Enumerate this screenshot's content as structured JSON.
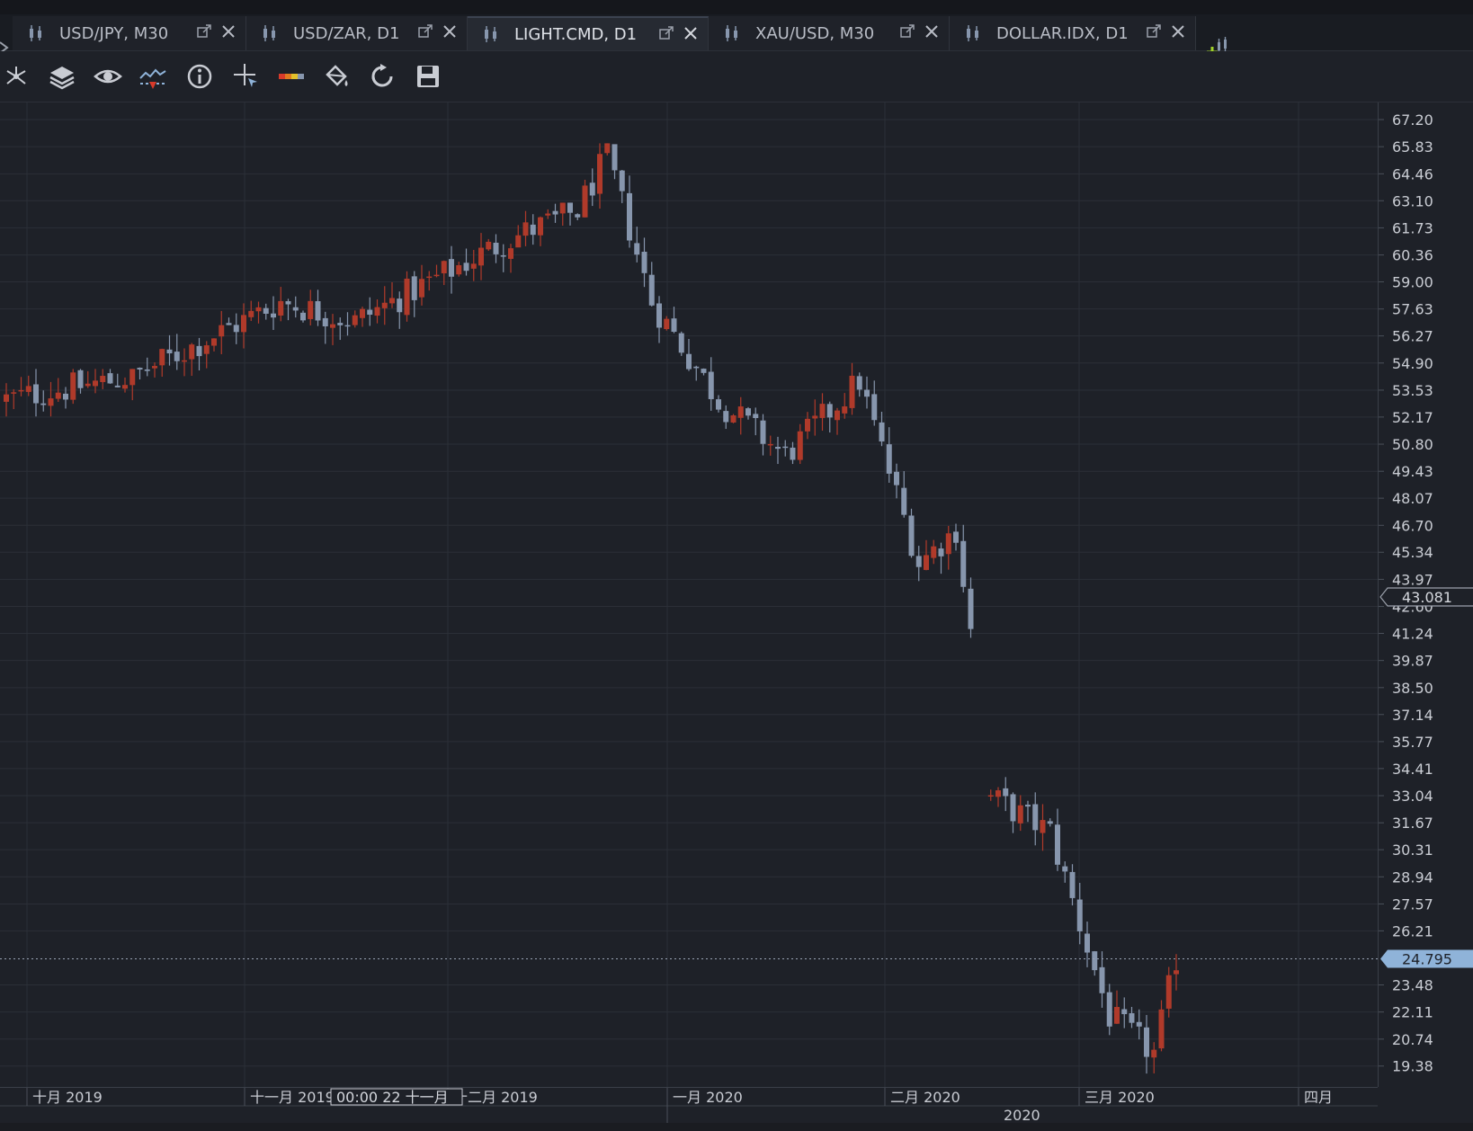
{
  "tabs": [
    {
      "label": "USD/JPY, M30",
      "active": false
    },
    {
      "label": "USD/ZAR, D1",
      "active": false
    },
    {
      "label": "LIGHT.CMD, D1",
      "active": true
    },
    {
      "label": "XAU/USD, M30",
      "active": false
    },
    {
      "label": "DOLLAR.IDX, D1",
      "active": false
    }
  ],
  "toolbar": {
    "icons": [
      "drawing-tools-icon",
      "layers-icon",
      "eye-icon",
      "indicators-icon",
      "info-icon",
      "crosshair-icon",
      "palette-icon",
      "paint-bucket-icon",
      "refresh-icon",
      "save-icon"
    ]
  },
  "colors": {
    "background": "#1e2128",
    "bull_candle": "#8796ad",
    "bear_candle": "#b03a2a",
    "grid": "#2b2f37",
    "accent_label": "#8fb3d9",
    "add_tab": "#9fd12a"
  },
  "chart": {
    "symbol": "LIGHT.CMD, D1",
    "price_ticks": [
      "67.20",
      "65.83",
      "64.46",
      "63.10",
      "61.73",
      "60.36",
      "59.00",
      "57.63",
      "56.27",
      "54.90",
      "53.53",
      "52.17",
      "50.80",
      "49.43",
      "48.07",
      "46.70",
      "45.34",
      "43.97",
      "42.60",
      "41.24",
      "39.87",
      "38.50",
      "37.14",
      "35.77",
      "34.41",
      "33.04",
      "31.67",
      "30.31",
      "28.94",
      "27.57",
      "26.21",
      "23.48",
      "22.11",
      "20.74",
      "19.38"
    ],
    "current_price": "24.795",
    "marker_price": "43.081",
    "time_labels": [
      "十月 2019",
      "十一月 2019",
      "十二月 2019",
      "一月 2020",
      "二月 2020",
      "三月 2020",
      "四月"
    ],
    "crosshair_time": "00:00 22 十一月",
    "year_label": "2020"
  },
  "chart_data": {
    "type": "candlestick",
    "title": "LIGHT.CMD, D1",
    "y_range": [
      19.0,
      67.5
    ],
    "segments": [
      {
        "start": 53.0,
        "end": 54.2,
        "hi": 54.6,
        "lo": 52.2,
        "count": 18
      },
      {
        "start": 54.2,
        "end": 58.0,
        "hi": 58.8,
        "lo": 53.4,
        "count": 20
      },
      {
        "start": 58.0,
        "end": 57.0,
        "hi": 58.6,
        "lo": 55.8,
        "count": 10
      },
      {
        "start": 57.0,
        "end": 61.2,
        "hi": 61.9,
        "lo": 55.6,
        "count": 21
      },
      {
        "start": 61.2,
        "end": 62.6,
        "hi": 63.0,
        "lo": 60.8,
        "count": 9
      },
      {
        "start": 62.6,
        "end": 65.4,
        "hi": 66.0,
        "lo": 61.5,
        "count": 4
      },
      {
        "start": 65.4,
        "end": 58.0,
        "hi": 65.6,
        "lo": 57.4,
        "count": 6
      },
      {
        "start": 58.0,
        "end": 53.0,
        "hi": 59.4,
        "lo": 52.4,
        "count": 9
      },
      {
        "start": 53.0,
        "end": 50.2,
        "hi": 53.8,
        "lo": 49.8,
        "count": 9
      },
      {
        "start": 50.2,
        "end": 54.0,
        "hi": 54.9,
        "lo": 49.8,
        "count": 10
      },
      {
        "start": 54.0,
        "end": 44.8,
        "hi": 54.5,
        "lo": 43.8,
        "count": 8
      },
      {
        "start": 44.8,
        "end": 46.5,
        "hi": 48.4,
        "lo": 44.2,
        "count": 5
      },
      {
        "start": 46.5,
        "end": 41.3,
        "hi": 47.2,
        "lo": 41.0,
        "count": 2
      },
      {
        "start": 33.2,
        "end": 31.2,
        "hi": 36.0,
        "lo": 27.2,
        "count": 9
      },
      {
        "start": 31.2,
        "end": 21.9,
        "hi": 32.8,
        "lo": 19.5,
        "count": 8
      },
      {
        "start": 21.9,
        "end": 20.0,
        "hi": 24.9,
        "lo": 19.0,
        "count": 6
      },
      {
        "start": 20.0,
        "end": 24.8,
        "hi": 27.2,
        "lo": 19.4,
        "count": 3
      }
    ]
  }
}
